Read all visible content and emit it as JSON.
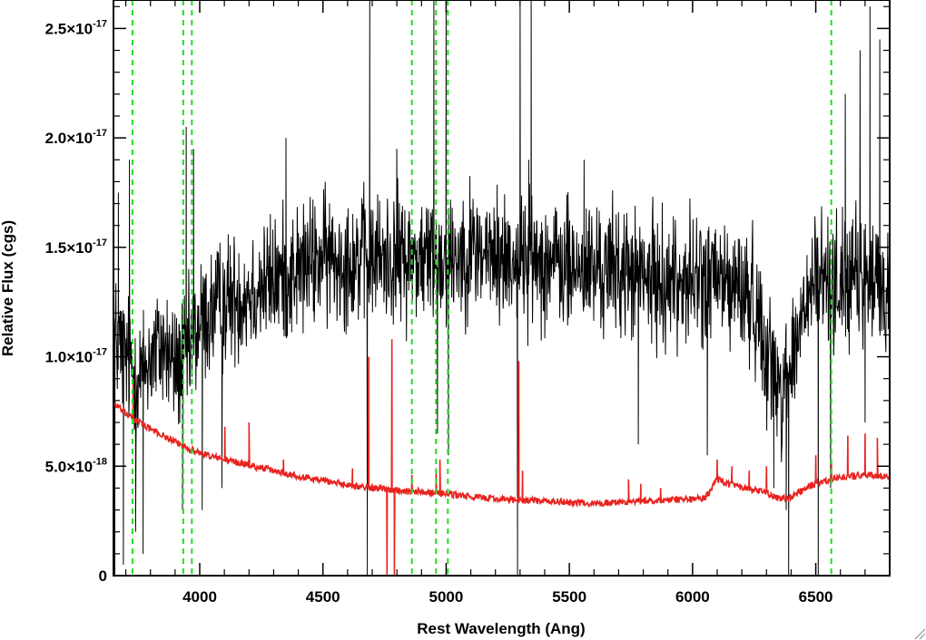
{
  "chart_data": {
    "type": "line",
    "title": "",
    "xlabel": "Rest Wavelength (Ang)",
    "ylabel": "Relative Flux (cgs)",
    "xlim": [
      3650,
      6800
    ],
    "ylim": [
      0,
      2.63e-17
    ],
    "x_ticks": [
      {
        "value": 4000,
        "label": "4000"
      },
      {
        "value": 4500,
        "label": "4500"
      },
      {
        "value": 5000,
        "label": "5000"
      },
      {
        "value": 5500,
        "label": "5500"
      },
      {
        "value": 6000,
        "label": "6000"
      },
      {
        "value": 6500,
        "label": "6500"
      }
    ],
    "y_ticks": [
      {
        "value": 0,
        "label": "0",
        "mantissa": "0",
        "exponent": ""
      },
      {
        "value": 5e-18,
        "label": "5.0×10-18",
        "mantissa": "5.0×10",
        "exponent": "-18"
      },
      {
        "value": 1e-17,
        "label": "1.0×10-17",
        "mantissa": "1.0×10",
        "exponent": "-17"
      },
      {
        "value": 1.5e-17,
        "label": "1.5×10-17",
        "mantissa": "1.5×10",
        "exponent": "-17"
      },
      {
        "value": 2e-17,
        "label": "2.0×10-17",
        "mantissa": "2.0×10",
        "exponent": "-17"
      },
      {
        "value": 2.5e-17,
        "label": "2.5×10-17",
        "mantissa": "2.5×10",
        "exponent": "-17"
      }
    ],
    "x_minor_step": 100,
    "y_minor_step": 1e-18,
    "grid": false,
    "legend": "none",
    "colors": {
      "spectrum": "#000000",
      "model": "#e8231f",
      "lines": "#22dd22"
    },
    "emission_line_markers": [
      3727,
      3933,
      3968,
      4861,
      4959,
      5007,
      6563
    ],
    "series": [
      {
        "key": "observed",
        "style": "noisy",
        "color": "#000000",
        "x_range": [
          3650,
          6800
        ],
        "noise_sigma": 2.6e-18,
        "baseline": [
          [
            3650,
            1.1e-17
          ],
          [
            3700,
            1e-17
          ],
          [
            3750,
            9e-18
          ],
          [
            3800,
            1e-17
          ],
          [
            3850,
            1.05e-17
          ],
          [
            3900,
            9.5e-18
          ],
          [
            3950,
            1e-17
          ],
          [
            4000,
            1.15e-17
          ],
          [
            4100,
            1.25e-17
          ],
          [
            4200,
            1.3e-17
          ],
          [
            4300,
            1.35e-17
          ],
          [
            4400,
            1.4e-17
          ],
          [
            4500,
            1.45e-17
          ],
          [
            4600,
            1.45e-17
          ],
          [
            4700,
            1.45e-17
          ],
          [
            4800,
            1.45e-17
          ],
          [
            4900,
            1.45e-17
          ],
          [
            5000,
            1.45e-17
          ],
          [
            5100,
            1.5e-17
          ],
          [
            5200,
            1.45e-17
          ],
          [
            5300,
            1.45e-17
          ],
          [
            5400,
            1.45e-17
          ],
          [
            5500,
            1.4e-17
          ],
          [
            5600,
            1.4e-17
          ],
          [
            5700,
            1.4e-17
          ],
          [
            5800,
            1.35e-17
          ],
          [
            5900,
            1.35e-17
          ],
          [
            6000,
            1.35e-17
          ],
          [
            6100,
            1.35e-17
          ],
          [
            6200,
            1.3e-17
          ],
          [
            6250,
            1.25e-17
          ],
          [
            6300,
            1.05e-17
          ],
          [
            6350,
            8.5e-18
          ],
          [
            6400,
            9.5e-18
          ],
          [
            6450,
            1.2e-17
          ],
          [
            6500,
            1.35e-17
          ],
          [
            6600,
            1.35e-17
          ],
          [
            6700,
            1.35e-17
          ],
          [
            6800,
            1.3e-17
          ]
        ],
        "spikes": [
          [
            3655,
            0
          ],
          [
            3670,
            1.75e-17
          ],
          [
            3690,
            5e-19
          ],
          [
            3715,
            1.9e-17
          ],
          [
            3740,
            2e-18
          ],
          [
            3770,
            1e-18
          ],
          [
            3930,
            3e-18
          ],
          [
            3945,
            2.05e-17
          ],
          [
            3975,
            1.95e-17
          ],
          [
            4010,
            3e-18
          ],
          [
            4090,
            4e-18
          ],
          [
            4350,
            2e-17
          ],
          [
            4680,
            0
          ],
          [
            4690,
            2.63e-17
          ],
          [
            4800,
            1.95e-17
          ],
          [
            4950,
            2.63e-17
          ],
          [
            4965,
            6.5e-18
          ],
          [
            5000,
            2.63e-17
          ],
          [
            5010,
            5.5e-18
          ],
          [
            5290,
            0
          ],
          [
            5300,
            2.63e-17
          ],
          [
            5335,
            1.9e-17
          ],
          [
            5345,
            2.63e-17
          ],
          [
            5560,
            1.9e-17
          ],
          [
            5780,
            6e-18
          ],
          [
            6060,
            5.5e-18
          ],
          [
            6330,
            4e-18
          ],
          [
            6380,
            3e-18
          ],
          [
            6390,
            0
          ],
          [
            6510,
            0
          ],
          [
            6560,
            4e-18
          ],
          [
            6620,
            2.2e-17
          ],
          [
            6680,
            2.4e-17
          ],
          [
            6700,
            7e-18
          ],
          [
            6720,
            2.6e-17
          ],
          [
            6760,
            2.45e-17
          ]
        ]
      },
      {
        "key": "model",
        "style": "model",
        "color": "#e8231f",
        "x_range": [
          3650,
          6800
        ],
        "noise_sigma": 1.5e-19,
        "baseline": [
          [
            3650,
            7.9e-18
          ],
          [
            3700,
            7.4e-18
          ],
          [
            3800,
            6.7e-18
          ],
          [
            3900,
            6.1e-18
          ],
          [
            4000,
            5.6e-18
          ],
          [
            4100,
            5.3e-18
          ],
          [
            4200,
            5.05e-18
          ],
          [
            4300,
            4.8e-18
          ],
          [
            4400,
            4.55e-18
          ],
          [
            4500,
            4.35e-18
          ],
          [
            4600,
            4.15e-18
          ],
          [
            4700,
            4e-18
          ],
          [
            4800,
            3.9e-18
          ],
          [
            4900,
            3.85e-18
          ],
          [
            5000,
            3.75e-18
          ],
          [
            5100,
            3.6e-18
          ],
          [
            5200,
            3.5e-18
          ],
          [
            5300,
            3.45e-18
          ],
          [
            5400,
            3.4e-18
          ],
          [
            5500,
            3.35e-18
          ],
          [
            5600,
            3.3e-18
          ],
          [
            5700,
            3.35e-18
          ],
          [
            5800,
            3.4e-18
          ],
          [
            5900,
            3.45e-18
          ],
          [
            6000,
            3.5e-18
          ],
          [
            6050,
            3.55e-18
          ],
          [
            6100,
            4.4e-18
          ],
          [
            6200,
            4e-18
          ],
          [
            6300,
            3.8e-18
          ],
          [
            6350,
            3.5e-18
          ],
          [
            6400,
            3.6e-18
          ],
          [
            6500,
            4.2e-18
          ],
          [
            6600,
            4.5e-18
          ],
          [
            6700,
            4.6e-18
          ],
          [
            6800,
            4.5e-18
          ]
        ],
        "spikes": [
          [
            3730,
            9e-18
          ],
          [
            4102,
            6.8e-18
          ],
          [
            4200,
            7e-18
          ],
          [
            4340,
            5.3e-18
          ],
          [
            4620,
            4.9e-18
          ],
          [
            4686,
            1e-17
          ],
          [
            4700,
            4.2e-18
          ],
          [
            4760,
            0
          ],
          [
            4780,
            1.08e-17
          ],
          [
            4790,
            0
          ],
          [
            4861,
            4.6e-18
          ],
          [
            4959,
            4.9e-18
          ],
          [
            4975,
            5.3e-18
          ],
          [
            5295,
            9.8e-18
          ],
          [
            5310,
            4.8e-18
          ],
          [
            5740,
            4.4e-18
          ],
          [
            5790,
            4.2e-18
          ],
          [
            5870,
            4e-18
          ],
          [
            6100,
            5.3e-18
          ],
          [
            6160,
            5e-18
          ],
          [
            6230,
            4.8e-18
          ],
          [
            6300,
            5e-18
          ],
          [
            6500,
            5.5e-18
          ],
          [
            6563,
            5.3e-18
          ],
          [
            6630,
            6.4e-18
          ],
          [
            6700,
            6.5e-18
          ],
          [
            6750,
            6.3e-18
          ]
        ]
      }
    ]
  }
}
